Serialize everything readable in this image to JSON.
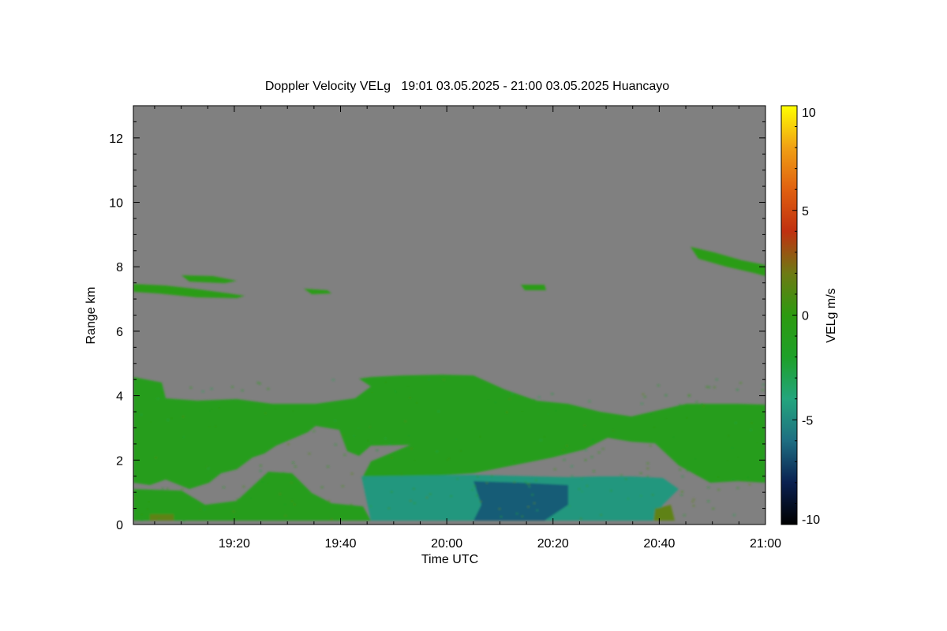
{
  "chart_data": {
    "type": "heatmap",
    "title": "Doppler Velocity VELg   19:01 03.05.2025 - 21:00 03.05.2025 Huancayo",
    "xlabel": "Time UTC",
    "ylabel": "Range km",
    "x_ticks": [
      "19:20",
      "19:40",
      "20:00",
      "20:20",
      "20:40",
      "21:00"
    ],
    "x_tick_minutes": [
      1160,
      1180,
      1200,
      1220,
      1240,
      1260
    ],
    "xlim_minutes": [
      1141,
      1260
    ],
    "y_ticks": [
      "0",
      "2",
      "4",
      "6",
      "8",
      "10",
      "12"
    ],
    "y_tick_values": [
      0,
      2,
      4,
      6,
      8,
      10,
      12
    ],
    "ylim": [
      0,
      13
    ],
    "colorbar": {
      "label": "VELg m/s",
      "ticks": [
        "10",
        "5",
        "0",
        "-5",
        "-10"
      ],
      "tick_values": [
        10,
        5,
        0,
        -5,
        -10
      ],
      "range": [
        -10,
        10
      ],
      "colors": [
        "#000000",
        "#0a2050",
        "#1e6e82",
        "#23a57d",
        "#1ea028",
        "#2d9a10",
        "#6e7a14",
        "#c03010",
        "#e06010",
        "#f0a014",
        "#ffff00"
      ]
    },
    "background_color": "#808080",
    "regions": [
      {
        "name": "lower-cloud-layer",
        "velocity": -1,
        "t_start": 1141,
        "t_end": 1260,
        "range_bottom": 0.2,
        "range_top": 4.7
      },
      {
        "name": "strong-downdraft",
        "velocity": -4.5,
        "t_start": 1199,
        "t_end": 1245,
        "range_bottom": 0.2,
        "range_top": 1.4
      },
      {
        "name": "upper-layer-left",
        "velocity": -0.5,
        "t_start": 1141,
        "t_end": 1161,
        "range_bottom": 7.1,
        "range_top": 7.5
      },
      {
        "name": "upper-layer-right",
        "velocity": -0.5,
        "t_start": 1246,
        "t_end": 1260,
        "range_bottom": 7.8,
        "range_top": 8.6
      },
      {
        "name": "near-ground-updraft",
        "velocity": 1.5,
        "t_start": 1240,
        "t_end": 1243,
        "range_bottom": 0.1,
        "range_top": 0.5
      }
    ]
  }
}
